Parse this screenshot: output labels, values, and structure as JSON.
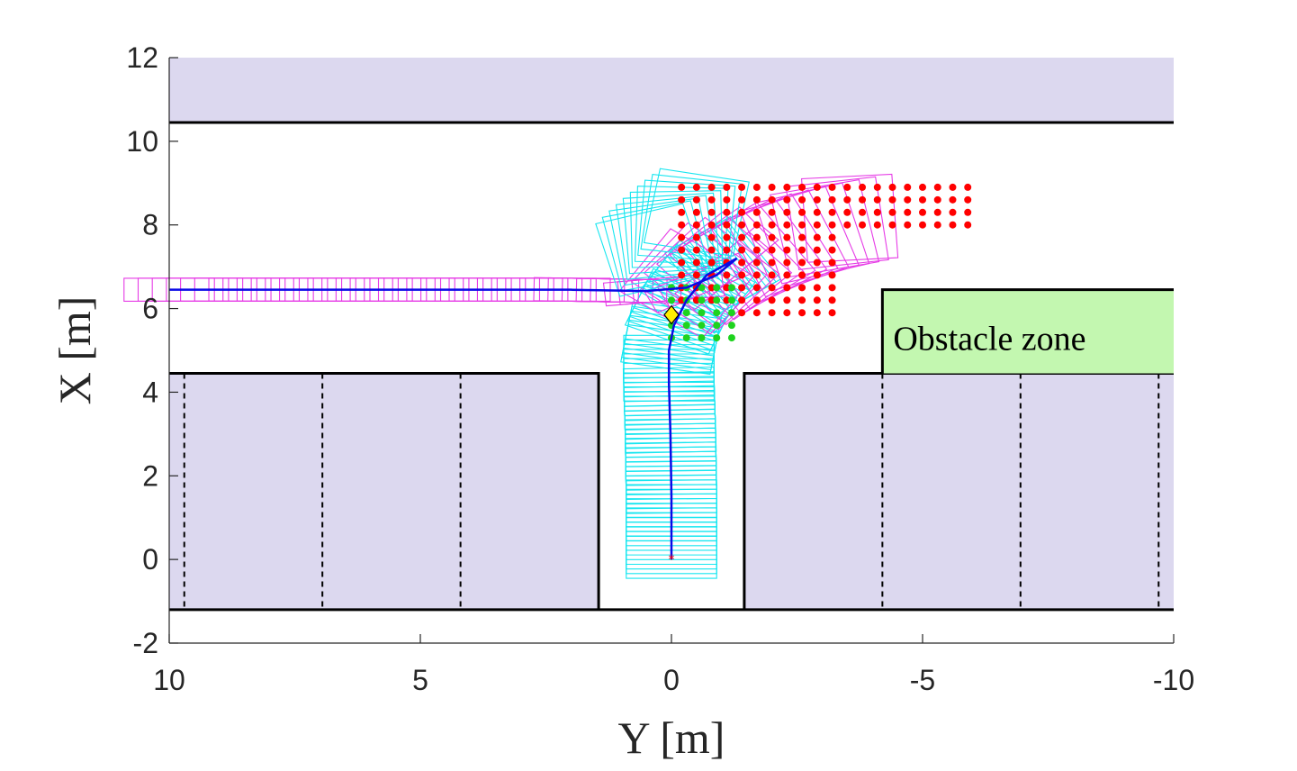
{
  "chart_data": {
    "type": "scatter",
    "title": "",
    "xlabel": "Y [m]",
    "ylabel": "X [m]",
    "x_axis_reversed": true,
    "xlim": [
      10,
      -10
    ],
    "ylim": [
      -2,
      12
    ],
    "xticks": [
      10,
      5,
      0,
      -5,
      -10
    ],
    "yticks": [
      -2,
      0,
      2,
      4,
      6,
      8,
      10,
      12
    ],
    "grid": false,
    "colors": {
      "road_band": "#dcd8ef",
      "obstacle": "#c3f7b0",
      "path": "#0a0ae6",
      "start_trace": "#16e6f0",
      "end_trace": "#e63ce6",
      "red_points": "#ff0000",
      "green_points": "#1ed31e",
      "marker": "#ffee00"
    },
    "regions": {
      "top_band": {
        "y_min": -10,
        "y_max": 10,
        "x_min": 10.45,
        "x_max": 12
      },
      "bottom_left_band": {
        "y_min": 1.45,
        "y_max": 10,
        "x_min": -1.2,
        "x_max": 4.45
      },
      "bottom_right_band": {
        "y_min": -10,
        "y_max": -1.45,
        "x_min": -1.2,
        "x_max": 4.45
      },
      "obstacle_zone": {
        "label": "Obstacle zone",
        "y_min": -4.2,
        "y_max": -10,
        "x_min": 4.45,
        "x_max": 6.45
      }
    },
    "parking_dividers_y": [
      9.7,
      6.95,
      4.2,
      -4.2,
      -6.95,
      -9.7
    ],
    "series": [
      {
        "name": "",
        "kind": "path",
        "points": [
          [
            0,
            0
          ],
          [
            0,
            1.5
          ],
          [
            0.02,
            3
          ],
          [
            0.05,
            4.2
          ],
          [
            0.05,
            5
          ],
          [
            -0.05,
            5.6
          ],
          [
            -0.3,
            6.2
          ],
          [
            -0.7,
            6.8
          ],
          [
            -1.3,
            7.2
          ]
        ]
      },
      {
        "name": "",
        "kind": "path",
        "points": [
          [
            10,
            6.45
          ],
          [
            5,
            6.45
          ],
          [
            2,
            6.45
          ],
          [
            0.5,
            6.42
          ],
          [
            -0.3,
            6.5
          ],
          [
            -0.9,
            6.8
          ],
          [
            -1.3,
            7.2
          ]
        ]
      },
      {
        "name": "",
        "kind": "point-grid",
        "y_from": -0.2,
        "y_to": -6,
        "y_step": -0.3,
        "x_from": 5.9,
        "x_to": 8.9,
        "x_step": 0.3
      },
      {
        "name": "",
        "kind": "point-grid",
        "y_from": 0,
        "y_to": -1.2,
        "y_step": -0.3,
        "x_from": 5.3,
        "x_to": 6.5,
        "x_step": 0.3
      },
      {
        "name": "",
        "kind": "marker",
        "points": [
          [
            0,
            5.85
          ]
        ]
      },
      {
        "name": "",
        "kind": "start",
        "points": [
          [
            0,
            0
          ]
        ]
      }
    ]
  }
}
